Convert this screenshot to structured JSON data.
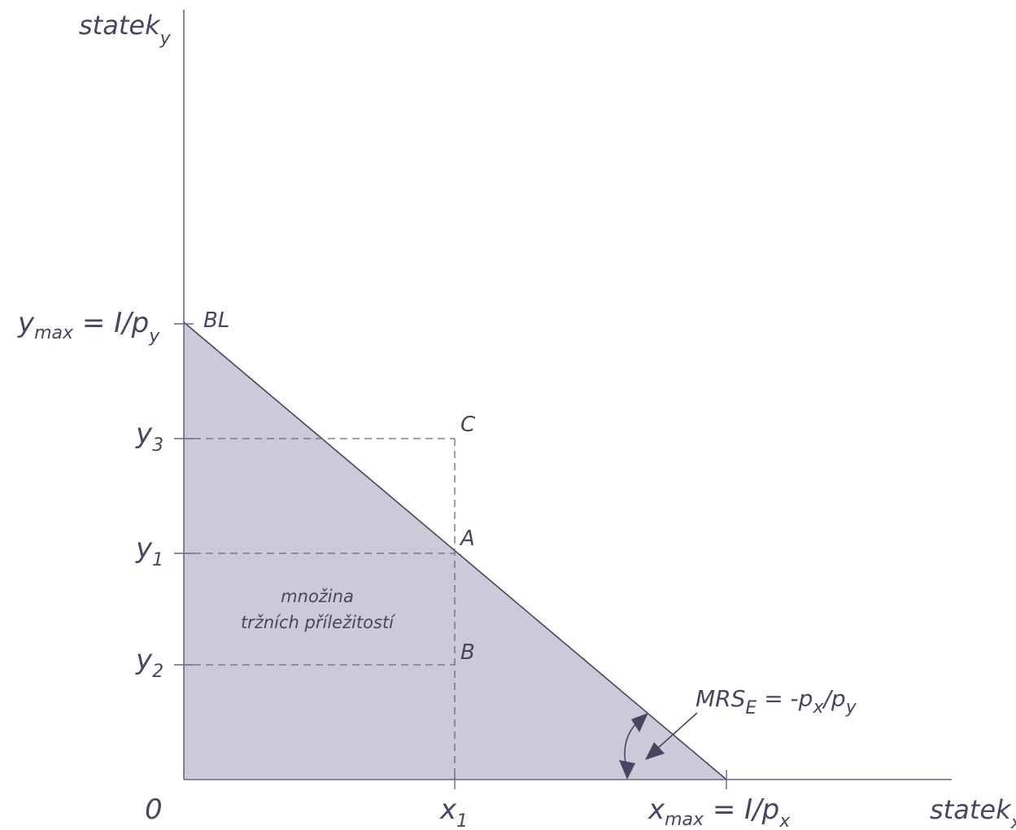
{
  "axes": {
    "y_label": "statek",
    "y_label_sub": "y",
    "x_label": "statek",
    "x_label_sub": "x",
    "origin": "0"
  },
  "y_ticks": {
    "ymax": {
      "main": "y",
      "sub": "max",
      "rest": " = I/p",
      "rest_sub": "y"
    },
    "y3": {
      "main": "y",
      "sub": "3"
    },
    "y1": {
      "main": "y",
      "sub": "1"
    },
    "y2": {
      "main": "y",
      "sub": "2"
    }
  },
  "x_ticks": {
    "x1": {
      "main": "x",
      "sub": "1"
    },
    "xmax": {
      "main": "x",
      "sub": "max",
      "rest": " = I/p",
      "rest_sub": "x"
    }
  },
  "budget_line_label": "BL",
  "points": {
    "C": "C",
    "A": "A",
    "B": "B"
  },
  "area_label": {
    "line1": "množina",
    "line2": "tržních příležitostí"
  },
  "mrs": {
    "main": "MRS",
    "sub": "E",
    "rest1": " = -p",
    "sub2": "x",
    "rest2": "/p",
    "sub3": "y"
  },
  "colors": {
    "fill": "#cdc9d8",
    "line": "#4a4560",
    "axis": "#6b6780",
    "dash": "#6b6780"
  }
}
